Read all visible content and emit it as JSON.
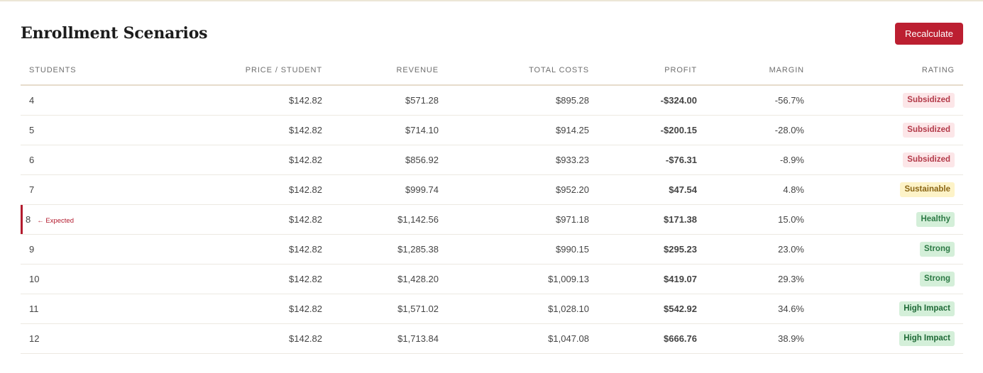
{
  "header": {
    "title": "Enrollment Scenarios",
    "recalculate_label": "Recalculate"
  },
  "table": {
    "columns": [
      "STUDENTS",
      "PRICE / STUDENT",
      "REVENUE",
      "TOTAL COSTS",
      "PROFIT",
      "MARGIN",
      "RATING"
    ],
    "expected_tag": "← Expected",
    "rows": [
      {
        "students": "4",
        "price": "$142.82",
        "revenue": "$571.28",
        "total_costs": "$895.28",
        "profit": "-$324.00",
        "margin": "-56.7%",
        "rating": "Subsidized",
        "tone": "neg",
        "expected": false
      },
      {
        "students": "5",
        "price": "$142.82",
        "revenue": "$714.10",
        "total_costs": "$914.25",
        "profit": "-$200.15",
        "margin": "-28.0%",
        "rating": "Subsidized",
        "tone": "neg",
        "expected": false
      },
      {
        "students": "6",
        "price": "$142.82",
        "revenue": "$856.92",
        "total_costs": "$933.23",
        "profit": "-$76.31",
        "margin": "-8.9%",
        "rating": "Subsidized",
        "tone": "neg",
        "expected": false
      },
      {
        "students": "7",
        "price": "$142.82",
        "revenue": "$999.74",
        "total_costs": "$952.20",
        "profit": "$47.54",
        "margin": "4.8%",
        "rating": "Sustainable",
        "tone": "mid",
        "expected": false
      },
      {
        "students": "8",
        "price": "$142.82",
        "revenue": "$1,142.56",
        "total_costs": "$971.18",
        "profit": "$171.38",
        "margin": "15.0%",
        "rating": "Healthy",
        "tone": "pos",
        "expected": true
      },
      {
        "students": "9",
        "price": "$142.82",
        "revenue": "$1,285.38",
        "total_costs": "$990.15",
        "profit": "$295.23",
        "margin": "23.0%",
        "rating": "Strong",
        "tone": "pos",
        "expected": false
      },
      {
        "students": "10",
        "price": "$142.82",
        "revenue": "$1,428.20",
        "total_costs": "$1,009.13",
        "profit": "$419.07",
        "margin": "29.3%",
        "rating": "Strong",
        "tone": "pos",
        "expected": false
      },
      {
        "students": "11",
        "price": "$142.82",
        "revenue": "$1,571.02",
        "total_costs": "$1,028.10",
        "profit": "$542.92",
        "margin": "34.6%",
        "rating": "High Impact",
        "tone": "pos",
        "expected": false
      },
      {
        "students": "12",
        "price": "$142.82",
        "revenue": "$1,713.84",
        "total_costs": "$1,047.08",
        "profit": "$666.76",
        "margin": "38.9%",
        "rating": "High Impact",
        "tone": "pos",
        "expected": false
      }
    ]
  },
  "colors": {
    "accent": "#bc1f31",
    "negative": "#b31b2e",
    "neutral": "#a0781c",
    "positive": "#2a7a40"
  }
}
